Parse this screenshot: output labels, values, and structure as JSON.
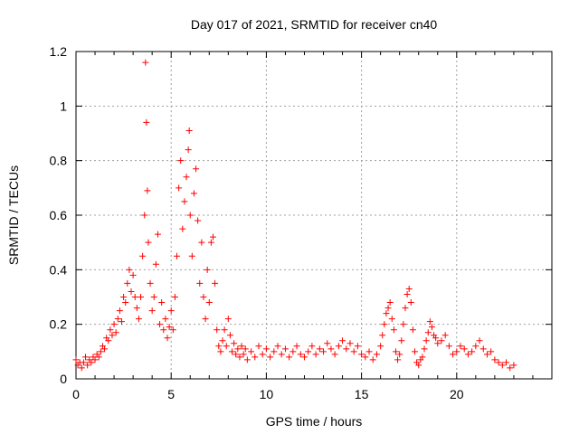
{
  "chart_data": {
    "type": "scatter",
    "title": "Day 017 of 2021, SRMTID for receiver cn40",
    "xlabel": "GPS time / hours",
    "ylabel": "SRMTID / TECUs",
    "xlim": [
      0,
      25
    ],
    "ylim": [
      0,
      1.2
    ],
    "xticks": [
      0,
      5,
      10,
      15,
      20
    ],
    "xtick_labels": [
      "0",
      "5",
      "10",
      "15",
      "20"
    ],
    "yticks": [
      0,
      0.2,
      0.4,
      0.6,
      0.8,
      1.0,
      1.2
    ],
    "ytick_labels": [
      "0",
      "0.2",
      "0.4",
      "0.6",
      "0.8",
      "1",
      "1.2"
    ],
    "grid": true,
    "marker": "+",
    "marker_color": "#ff0000",
    "series": [
      {
        "name": "SRMTID",
        "points": [
          [
            0.0,
            0.07
          ],
          [
            0.1,
            0.05
          ],
          [
            0.2,
            0.06
          ],
          [
            0.3,
            0.04
          ],
          [
            0.4,
            0.06
          ],
          [
            0.5,
            0.08
          ],
          [
            0.6,
            0.05
          ],
          [
            0.7,
            0.07
          ],
          [
            0.8,
            0.06
          ],
          [
            0.9,
            0.08
          ],
          [
            1.0,
            0.07
          ],
          [
            1.1,
            0.09
          ],
          [
            1.2,
            0.08
          ],
          [
            1.3,
            0.1
          ],
          [
            1.4,
            0.12
          ],
          [
            1.5,
            0.11
          ],
          [
            1.6,
            0.15
          ],
          [
            1.7,
            0.14
          ],
          [
            1.8,
            0.18
          ],
          [
            1.9,
            0.16
          ],
          [
            2.0,
            0.2
          ],
          [
            2.1,
            0.17
          ],
          [
            2.2,
            0.22
          ],
          [
            2.3,
            0.25
          ],
          [
            2.4,
            0.21
          ],
          [
            2.5,
            0.3
          ],
          [
            2.6,
            0.28
          ],
          [
            2.7,
            0.35
          ],
          [
            2.8,
            0.4
          ],
          [
            2.9,
            0.32
          ],
          [
            3.0,
            0.38
          ],
          [
            3.1,
            0.3
          ],
          [
            3.2,
            0.26
          ],
          [
            3.3,
            0.22
          ],
          [
            3.4,
            0.3
          ],
          [
            3.5,
            0.45
          ],
          [
            3.6,
            0.6
          ],
          [
            3.65,
            1.16
          ],
          [
            3.7,
            0.94
          ],
          [
            3.75,
            0.69
          ],
          [
            3.8,
            0.5
          ],
          [
            3.9,
            0.35
          ],
          [
            4.0,
            0.25
          ],
          [
            4.1,
            0.3
          ],
          [
            4.2,
            0.42
          ],
          [
            4.3,
            0.53
          ],
          [
            4.4,
            0.2
          ],
          [
            4.5,
            0.28
          ],
          [
            4.6,
            0.18
          ],
          [
            4.7,
            0.22
          ],
          [
            4.8,
            0.15
          ],
          [
            4.9,
            0.19
          ],
          [
            5.0,
            0.25
          ],
          [
            5.1,
            0.18
          ],
          [
            5.2,
            0.3
          ],
          [
            5.3,
            0.45
          ],
          [
            5.4,
            0.7
          ],
          [
            5.5,
            0.8
          ],
          [
            5.6,
            0.55
          ],
          [
            5.7,
            0.65
          ],
          [
            5.8,
            0.74
          ],
          [
            5.9,
            0.84
          ],
          [
            5.95,
            0.91
          ],
          [
            6.0,
            0.6
          ],
          [
            6.1,
            0.45
          ],
          [
            6.2,
            0.68
          ],
          [
            6.3,
            0.77
          ],
          [
            6.4,
            0.58
          ],
          [
            6.5,
            0.35
          ],
          [
            6.6,
            0.5
          ],
          [
            6.7,
            0.3
          ],
          [
            6.8,
            0.22
          ],
          [
            6.9,
            0.4
          ],
          [
            7.0,
            0.28
          ],
          [
            7.1,
            0.5
          ],
          [
            7.2,
            0.52
          ],
          [
            7.3,
            0.35
          ],
          [
            7.4,
            0.18
          ],
          [
            7.5,
            0.12
          ],
          [
            7.6,
            0.1
          ],
          [
            7.7,
            0.14
          ],
          [
            7.8,
            0.18
          ],
          [
            7.9,
            0.12
          ],
          [
            8.0,
            0.22
          ],
          [
            8.1,
            0.16
          ],
          [
            8.2,
            0.1
          ],
          [
            8.3,
            0.13
          ],
          [
            8.4,
            0.09
          ],
          [
            8.5,
            0.11
          ],
          [
            8.6,
            0.08
          ],
          [
            8.7,
            0.12
          ],
          [
            8.8,
            0.09
          ],
          [
            8.9,
            0.11
          ],
          [
            9.0,
            0.07
          ],
          [
            9.2,
            0.1
          ],
          [
            9.4,
            0.08
          ],
          [
            9.6,
            0.12
          ],
          [
            9.8,
            0.09
          ],
          [
            10.0,
            0.11
          ],
          [
            10.2,
            0.08
          ],
          [
            10.4,
            0.1
          ],
          [
            10.6,
            0.12
          ],
          [
            10.8,
            0.09
          ],
          [
            11.0,
            0.11
          ],
          [
            11.2,
            0.08
          ],
          [
            11.4,
            0.1
          ],
          [
            11.6,
            0.12
          ],
          [
            11.8,
            0.09
          ],
          [
            12.0,
            0.08
          ],
          [
            12.2,
            0.1
          ],
          [
            12.4,
            0.12
          ],
          [
            12.6,
            0.09
          ],
          [
            12.8,
            0.11
          ],
          [
            13.0,
            0.1
          ],
          [
            13.2,
            0.13
          ],
          [
            13.4,
            0.11
          ],
          [
            13.6,
            0.09
          ],
          [
            13.8,
            0.12
          ],
          [
            14.0,
            0.14
          ],
          [
            14.2,
            0.11
          ],
          [
            14.4,
            0.13
          ],
          [
            14.6,
            0.1
          ],
          [
            14.8,
            0.12
          ],
          [
            15.0,
            0.09
          ],
          [
            15.2,
            0.08
          ],
          [
            15.4,
            0.1
          ],
          [
            15.6,
            0.07
          ],
          [
            15.8,
            0.09
          ],
          [
            16.0,
            0.12
          ],
          [
            16.1,
            0.16
          ],
          [
            16.2,
            0.2
          ],
          [
            16.3,
            0.24
          ],
          [
            16.4,
            0.26
          ],
          [
            16.5,
            0.28
          ],
          [
            16.6,
            0.22
          ],
          [
            16.7,
            0.18
          ],
          [
            16.8,
            0.1
          ],
          [
            16.9,
            0.07
          ],
          [
            17.0,
            0.09
          ],
          [
            17.1,
            0.14
          ],
          [
            17.2,
            0.2
          ],
          [
            17.3,
            0.26
          ],
          [
            17.4,
            0.31
          ],
          [
            17.5,
            0.33
          ],
          [
            17.6,
            0.28
          ],
          [
            17.7,
            0.18
          ],
          [
            17.8,
            0.1
          ],
          [
            17.9,
            0.06
          ],
          [
            18.0,
            0.05
          ],
          [
            18.1,
            0.07
          ],
          [
            18.2,
            0.08
          ],
          [
            18.3,
            0.11
          ],
          [
            18.4,
            0.14
          ],
          [
            18.5,
            0.17
          ],
          [
            18.6,
            0.21
          ],
          [
            18.7,
            0.19
          ],
          [
            18.8,
            0.16
          ],
          [
            18.9,
            0.15
          ],
          [
            19.0,
            0.13
          ],
          [
            19.2,
            0.14
          ],
          [
            19.4,
            0.16
          ],
          [
            19.6,
            0.12
          ],
          [
            19.8,
            0.09
          ],
          [
            20.0,
            0.1
          ],
          [
            20.2,
            0.12
          ],
          [
            20.4,
            0.11
          ],
          [
            20.6,
            0.09
          ],
          [
            20.8,
            0.1
          ],
          [
            21.0,
            0.12
          ],
          [
            21.2,
            0.14
          ],
          [
            21.4,
            0.11
          ],
          [
            21.6,
            0.09
          ],
          [
            21.8,
            0.1
          ],
          [
            22.0,
            0.07
          ],
          [
            22.2,
            0.06
          ],
          [
            22.4,
            0.05
          ],
          [
            22.6,
            0.06
          ],
          [
            22.8,
            0.04
          ],
          [
            23.0,
            0.05
          ]
        ]
      }
    ]
  }
}
